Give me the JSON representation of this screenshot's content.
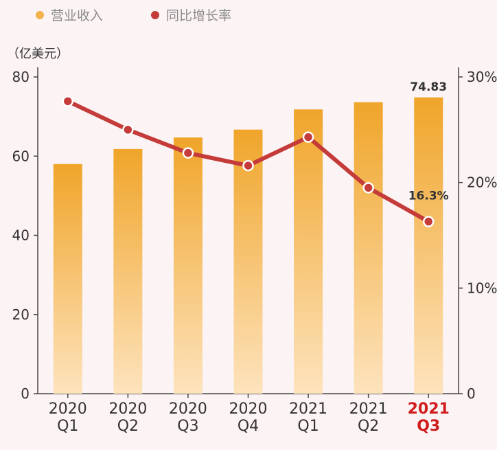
{
  "legend": {
    "revenue_label": "营业收入",
    "growth_label": "同比增长率"
  },
  "unit_label": "（亿美元）",
  "colors": {
    "bar_top": "#f0a52a",
    "bar_bottom": "#fde3bd",
    "line": "#c43b3a",
    "highlight": "#d01c1c",
    "text": "#333333",
    "legend_text": "#8a8a8a"
  },
  "chart_data": {
    "type": "bar",
    "categories": [
      [
        "2020",
        "Q1"
      ],
      [
        "2020",
        "Q2"
      ],
      [
        "2020",
        "Q3"
      ],
      [
        "2020",
        "Q4"
      ],
      [
        "2021",
        "Q1"
      ],
      [
        "2021",
        "Q2"
      ],
      [
        "2021",
        "Q3"
      ]
    ],
    "highlight_index": 6,
    "series": [
      {
        "name": "营业收入",
        "type": "bar",
        "axis": "left",
        "values": [
          58.0,
          61.8,
          64.7,
          66.7,
          71.8,
          73.6,
          74.83
        ]
      },
      {
        "name": "同比增长率",
        "type": "line",
        "axis": "right",
        "values": [
          27.7,
          25.0,
          22.8,
          21.6,
          24.3,
          19.5,
          16.3
        ]
      }
    ],
    "data_labels": [
      {
        "series": 0,
        "index": 6,
        "text": "74.83"
      },
      {
        "series": 1,
        "index": 6,
        "text": "16.3%"
      }
    ],
    "y_left": {
      "ylim": [
        0,
        80
      ],
      "ticks": [
        0,
        20,
        40,
        60,
        80
      ]
    },
    "y_right": {
      "ylim": [
        0,
        30
      ],
      "ticks": [
        0,
        10,
        20,
        30
      ],
      "tick_labels": [
        "0",
        "10%",
        "20%",
        "30%"
      ]
    },
    "grid": false
  }
}
